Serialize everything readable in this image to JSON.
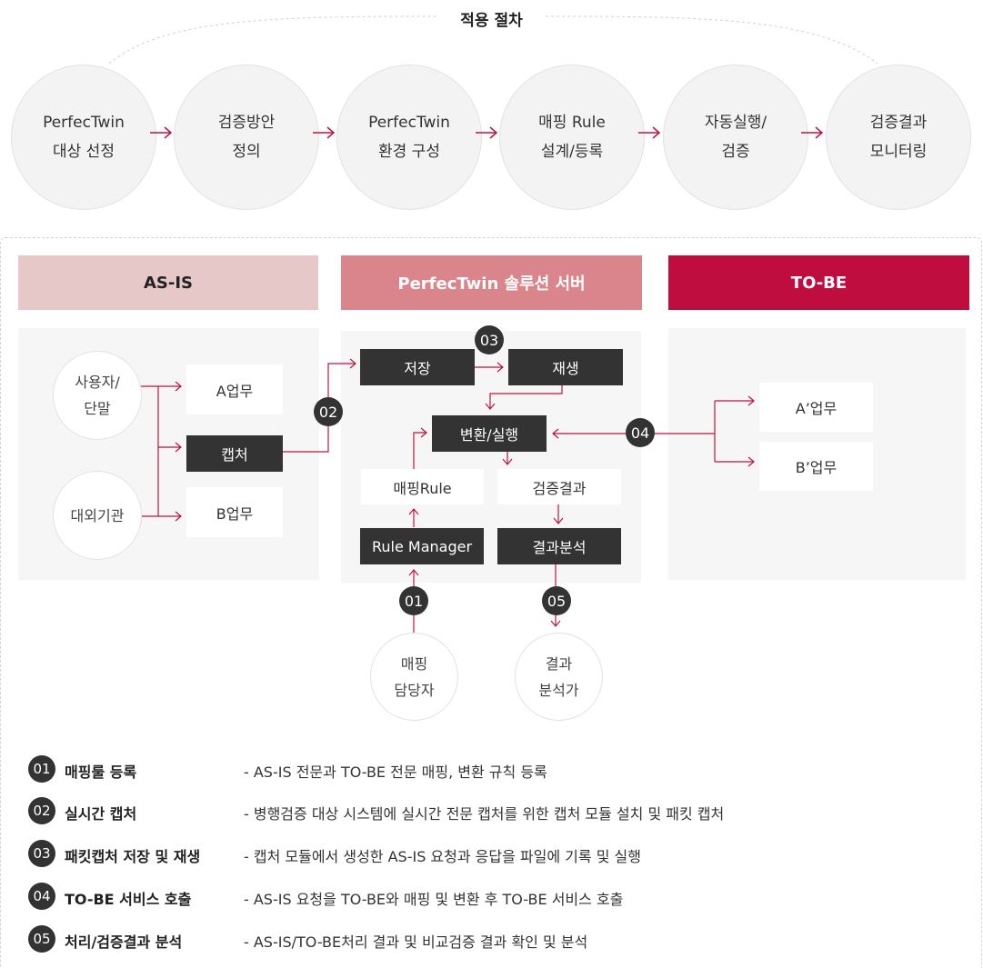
{
  "process": {
    "title": "적용 절차",
    "steps": [
      "PerfecTwin\n대상 선정",
      "검증방안\n정의",
      "PerfecTwin\n환경 구성",
      "매핑 Rule\n설계/등록",
      "자동실행/\n검증",
      "검증결과\n모니터링"
    ]
  },
  "sections": {
    "asis": "AS-IS",
    "server": "PerfecTwin 솔루션 서버",
    "tobe": "TO-BE"
  },
  "colors": {
    "asis_header": "#e6c8c8",
    "server_header": "#d9858b",
    "tobe_header": "#c00d40",
    "arrow": "#c0143c"
  },
  "asis": {
    "user": "사용자/\n단말",
    "external": "대외기관",
    "task_a": "A업무",
    "capture": "캡처",
    "task_b": "B업무"
  },
  "server": {
    "save": "저장",
    "replay": "재생",
    "convert": "변환/실행",
    "mapping_rule": "매핑Rule",
    "verify_result": "검증결과",
    "rule_manager": "Rule Manager",
    "result_analysis": "결과분석",
    "mapping_owner": "매핑\n담당자",
    "result_analyst": "결과\n분석가"
  },
  "tobe": {
    "task_a": "A’업무",
    "task_b": "B’업무"
  },
  "badges": [
    "01",
    "02",
    "03",
    "04",
    "05"
  ],
  "legend": [
    {
      "num": "01",
      "title": "매핑룰 등록",
      "desc": "- AS-IS 전문과 TO-BE 전문 매핑, 변환 규칙 등록"
    },
    {
      "num": "02",
      "title": "실시간 캡처",
      "desc": "- 병행검증 대상 시스템에 실시간 전문 캡처를 위한 캡처 모듈 설치 및 패킷 캡처"
    },
    {
      "num": "03",
      "title": "패킷캡처 저장 및 재생",
      "desc": "- 캡처 모듈에서 생성한 AS-IS 요청과 응답을 파일에 기록 및 실행"
    },
    {
      "num": "04",
      "title": "TO-BE 서비스 호출",
      "desc": "- AS-IS 요청을 TO-BE와 매핑 및 변환 후 TO-BE 서비스 호출"
    },
    {
      "num": "05",
      "title": "처리/검증결과 분석",
      "desc": "- AS-IS/TO-BE처리 결과 및 비교검증 결과 확인 및 분석"
    }
  ]
}
